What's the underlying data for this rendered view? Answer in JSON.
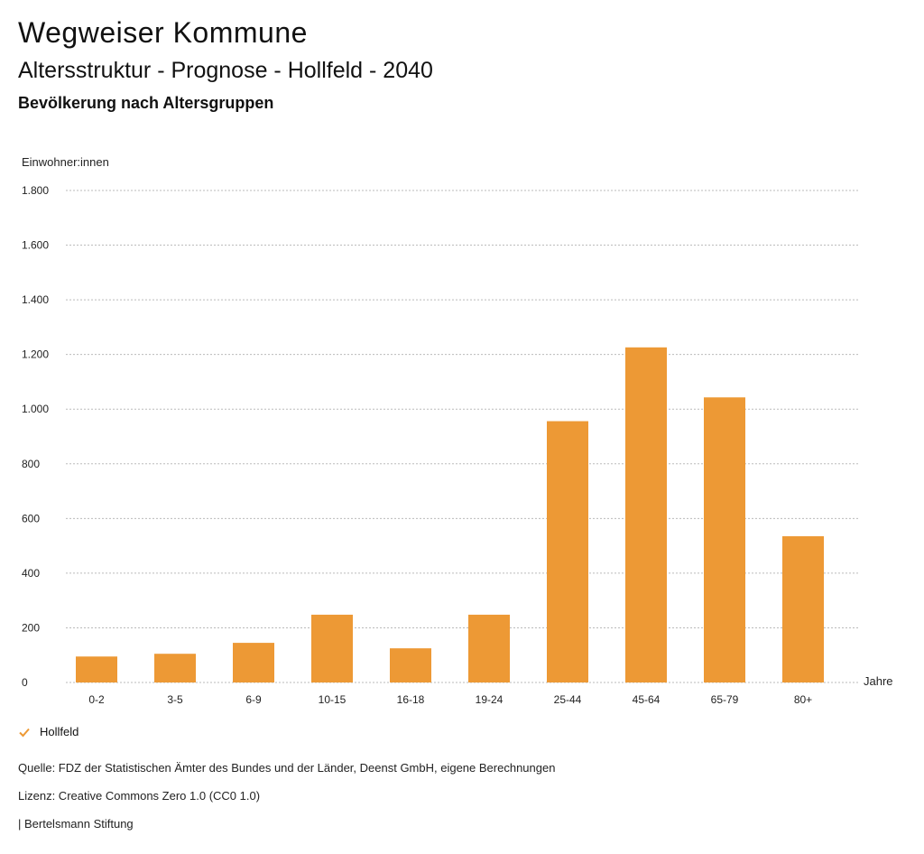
{
  "header": {
    "app_title": "Wegweiser Kommune",
    "chart_title": "Altersstruktur - Prognose - Hollfeld - 2040",
    "chart_subtitle": "Bevölkerung nach Altersgruppen"
  },
  "chart_data": {
    "type": "bar",
    "ylabel": "Einwohner:innen",
    "xlabel": "Jahre",
    "categories": [
      "0-2",
      "3-5",
      "6-9",
      "10-15",
      "16-18",
      "19-24",
      "25-44",
      "45-64",
      "65-79",
      "80+"
    ],
    "series": [
      {
        "name": "Hollfeld",
        "values": [
          95,
          105,
          145,
          248,
          125,
          248,
          956,
          1226,
          1043,
          535
        ]
      }
    ],
    "ylim": [
      0,
      1800
    ],
    "yticks": [
      0,
      200,
      400,
      600,
      800,
      1000,
      1200,
      1400,
      1600,
      1800
    ],
    "ytick_labels": [
      "0",
      "200",
      "400",
      "600",
      "800",
      "1.000",
      "1.200",
      "1.400",
      "1.600",
      "1.800"
    ],
    "grid": true,
    "legend_position": "bottom-left",
    "bar_color": "#ED9935"
  },
  "legend": {
    "label": "Hollfeld"
  },
  "footer": {
    "source": "Quelle: FDZ der Statistischen Ämter des Bundes und der Länder, Deenst GmbH, eigene Berechnungen",
    "license": "Lizenz: Creative Commons Zero 1.0 (CC0 1.0)",
    "brand": "| Bertelsmann Stiftung"
  }
}
